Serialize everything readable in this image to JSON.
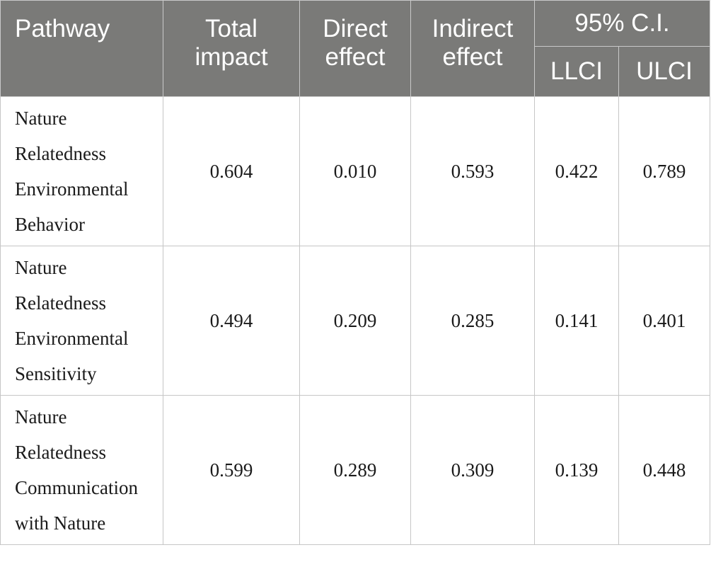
{
  "headers": {
    "pathway": "Pathway",
    "total_impact": [
      "Total",
      "impact"
    ],
    "direct_effect": [
      "Direct",
      "effect"
    ],
    "indirect_effect": [
      "Indirect",
      "effect"
    ],
    "ci": "95% C.I.",
    "llci": "LLCI",
    "ulci": "ULCI"
  },
  "rows": [
    {
      "pathway": [
        "Nature",
        "Relatedness",
        "Environmental",
        "Behavior"
      ],
      "total_impact": "0.604",
      "direct_effect": "0.010",
      "indirect_effect": "0.593",
      "llci": "0.422",
      "ulci": "0.789"
    },
    {
      "pathway": [
        "Nature",
        "Relatedness",
        "Environmental",
        "Sensitivity"
      ],
      "total_impact": "0.494",
      "direct_effect": "0.209",
      "indirect_effect": "0.285",
      "llci": "0.141",
      "ulci": "0.401"
    },
    {
      "pathway": [
        "Nature",
        "Relatedness",
        "Communication",
        "with Nature"
      ],
      "total_impact": "0.599",
      "direct_effect": "0.289",
      "indirect_effect": "0.309",
      "llci": "0.139",
      "ulci": "0.448"
    }
  ]
}
